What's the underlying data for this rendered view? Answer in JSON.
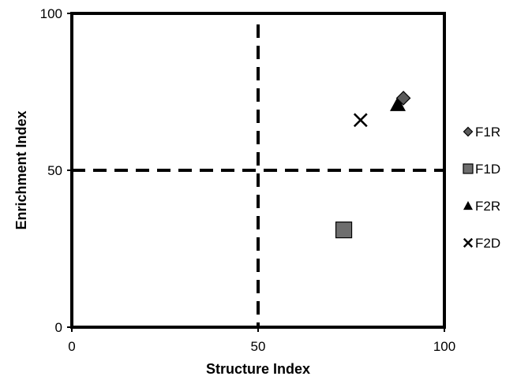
{
  "chart_data": {
    "type": "scatter",
    "xlabel": "Structure Index",
    "ylabel": "Enrichment Index",
    "xlim": [
      0,
      100
    ],
    "ylim": [
      0,
      100
    ],
    "x_ticks": [
      0,
      50,
      100
    ],
    "y_ticks": [
      0,
      50,
      100
    ],
    "grid": false,
    "legend_position": "right",
    "reference_lines": {
      "x": 50,
      "y": 50,
      "style": "dashed"
    },
    "series": [
      {
        "name": "F1R",
        "marker": "diamond",
        "color": "#5a5a5a",
        "points": [
          {
            "x": 89,
            "y": 73
          }
        ]
      },
      {
        "name": "F1D",
        "marker": "square",
        "color": "#6e6e6e",
        "points": [
          {
            "x": 73,
            "y": 31
          }
        ]
      },
      {
        "name": "F2R",
        "marker": "triangle",
        "color": "#000000",
        "points": [
          {
            "x": 87.5,
            "y": 71
          }
        ]
      },
      {
        "name": "F2D",
        "marker": "x",
        "color": "#000000",
        "points": [
          {
            "x": 77.5,
            "y": 66
          }
        ]
      }
    ]
  }
}
